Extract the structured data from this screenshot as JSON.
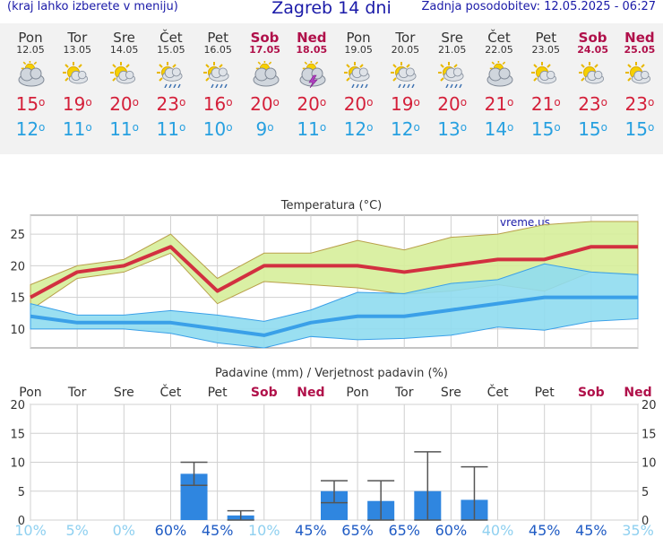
{
  "header": {
    "left_note": "(kraj lahko izberete v meniju)",
    "title": "Zagreb 14 dni",
    "updated": "Zadnja posodobitev: 12.05.2025 - 06:27"
  },
  "days": [
    {
      "day": "Pon",
      "date": "12.05",
      "icon": "partly-cloudy-icon",
      "max": "15",
      "min": "12",
      "weekend": false
    },
    {
      "day": "Tor",
      "date": "13.05",
      "icon": "sun-cloud-icon",
      "max": "19",
      "min": "11",
      "weekend": false
    },
    {
      "day": "Sre",
      "date": "14.05",
      "icon": "sun-cloud-icon",
      "max": "20",
      "min": "11",
      "weekend": false
    },
    {
      "day": "Čet",
      "date": "15.05",
      "icon": "sun-rain-icon",
      "max": "23",
      "min": "11",
      "weekend": false
    },
    {
      "day": "Pet",
      "date": "16.05",
      "icon": "sun-rain-icon",
      "max": "16",
      "min": "10",
      "weekend": false
    },
    {
      "day": "Sob",
      "date": "17.05",
      "icon": "partly-cloudy-icon",
      "max": "20",
      "min": "9",
      "weekend": true
    },
    {
      "day": "Ned",
      "date": "18.05",
      "icon": "thunderstorm-icon",
      "max": "20",
      "min": "11",
      "weekend": true
    },
    {
      "day": "Pon",
      "date": "19.05",
      "icon": "sun-rain-icon",
      "max": "20",
      "min": "12",
      "weekend": false
    },
    {
      "day": "Tor",
      "date": "20.05",
      "icon": "sun-rain-icon",
      "max": "19",
      "min": "12",
      "weekend": false
    },
    {
      "day": "Sre",
      "date": "21.05",
      "icon": "sun-rain-icon",
      "max": "20",
      "min": "13",
      "weekend": false
    },
    {
      "day": "Čet",
      "date": "22.05",
      "icon": "partly-cloudy-icon",
      "max": "21",
      "min": "14",
      "weekend": false
    },
    {
      "day": "Pet",
      "date": "23.05",
      "icon": "sun-cloud-icon",
      "max": "21",
      "min": "15",
      "weekend": false
    },
    {
      "day": "Sob",
      "date": "24.05",
      "icon": "sun-cloud-icon",
      "max": "23",
      "min": "15",
      "weekend": true
    },
    {
      "day": "Ned",
      "date": "25.05",
      "icon": "sun-cloud-icon",
      "max": "23",
      "min": "15",
      "weekend": true
    }
  ],
  "degree_symbol": "o",
  "chart_data": [
    {
      "type": "line",
      "title": "Temperatura (°C)",
      "watermark": "vreme.us",
      "ylim": [
        7,
        28
      ],
      "yticks": [
        10,
        15,
        20,
        25
      ],
      "grid": true,
      "x": [
        0,
        1,
        2,
        3,
        4,
        5,
        6,
        7,
        8,
        9,
        10,
        11,
        12,
        13
      ],
      "series": [
        {
          "role": "max",
          "color": "#d23040",
          "values": [
            15,
            19,
            20,
            23,
            16,
            20,
            20,
            20,
            19,
            20,
            21,
            21,
            23,
            23
          ]
        },
        {
          "role": "max-band-high",
          "values": [
            17,
            20,
            21,
            25,
            18,
            22,
            22,
            24,
            22.5,
            24.5,
            25,
            26.5,
            27,
            27
          ]
        },
        {
          "role": "max-band-low",
          "values": [
            13,
            18,
            19,
            22,
            14,
            17.5,
            17,
            16.5,
            15.5,
            16,
            17,
            16,
            19,
            18.5
          ]
        },
        {
          "role": "min",
          "color": "#3aa0e8",
          "values": [
            12,
            11,
            11,
            11,
            10,
            9,
            11,
            12,
            12,
            13,
            14,
            15,
            15,
            15
          ]
        },
        {
          "role": "min-band-high",
          "values": [
            14,
            12.2,
            12.2,
            12.9,
            12.2,
            11.2,
            13,
            15.8,
            15.6,
            17.2,
            17.8,
            20.3,
            19,
            18.6
          ]
        },
        {
          "role": "min-band-low",
          "values": [
            10,
            10,
            10,
            9.3,
            7.8,
            7,
            8.8,
            8.3,
            8.5,
            9,
            10.3,
            9.8,
            11.2,
            11.6
          ]
        }
      ]
    },
    {
      "type": "bar",
      "title": "Padavine (mm) / Verjetnost padavin (%)",
      "ylim": [
        0,
        20
      ],
      "yticks": [
        0,
        5,
        10,
        15,
        20
      ],
      "categories": [
        "Pon",
        "Tor",
        "Sre",
        "Čet",
        "Pet",
        "Sob",
        "Ned",
        "Pon",
        "Tor",
        "Sre",
        "Čet",
        "Pet",
        "Sob",
        "Ned"
      ],
      "values": [
        0,
        0,
        0,
        8,
        0.8,
        0,
        5,
        3.3,
        5,
        3.5,
        0,
        0,
        0,
        0
      ],
      "err_low": [
        0,
        0,
        0,
        6,
        0,
        0,
        3,
        0,
        0,
        0,
        0,
        0,
        0,
        0
      ],
      "err_high": [
        0,
        0,
        0,
        10,
        1.6,
        0,
        6.8,
        6.8,
        11.8,
        9.2,
        0,
        0,
        0,
        0
      ],
      "probability": [
        "10%",
        "5%",
        "0%",
        "60%",
        "45%",
        "10%",
        "45%",
        "65%",
        "65%",
        "60%",
        "40%",
        "45%",
        "45%",
        "35%"
      ],
      "bar_color": "#2f86e0"
    }
  ]
}
